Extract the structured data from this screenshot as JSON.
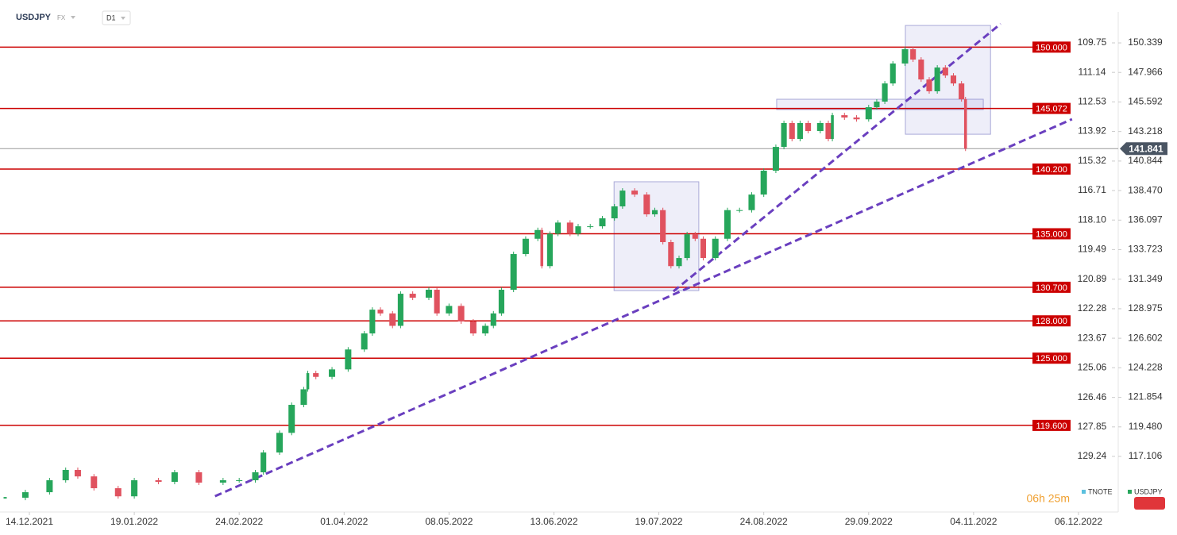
{
  "chart_data": {
    "type": "candlestick",
    "symbol": "USDJPY",
    "market": "FX",
    "timeframe": "D1",
    "timer": "06h 25m",
    "legend": [
      {
        "name": "TNOTE",
        "color": "#5bc0de"
      },
      {
        "name": "USDJPY",
        "color": "#26a65b"
      }
    ],
    "x": [
      0,
      5,
      11,
      15,
      18,
      22,
      28,
      32,
      38,
      42,
      48,
      54,
      58,
      62,
      64,
      68,
      71,
      74,
      75,
      77,
      81,
      85,
      89,
      91,
      93,
      96,
      98,
      101,
      105,
      107,
      110,
      113,
      116,
      119,
      121,
      123,
      126,
      129,
      132,
      133,
      135,
      137,
      140,
      142,
      145,
      148,
      151,
      153,
      156,
      159,
      161,
      163,
      165,
      167,
      169,
      171,
      173,
      176,
      179,
      182,
      185,
      188,
      191,
      193,
      195,
      197,
      199,
      202,
      204,
      205,
      208,
      211,
      214,
      216,
      218,
      220,
      223,
      225,
      227,
      229,
      231,
      233,
      235,
      237,
      238
    ],
    "series": [
      {
        "name": "USDJPY",
        "color_up": "#26a65b",
        "color_down": "#e0525f",
        "values": [
          113.78,
          114.23,
          115.19,
          116.02,
          115.5,
          114.55,
          113.9,
          115.19,
          115.06,
          115.83,
          115.0,
          115.19,
          115.19,
          115.83,
          117.42,
          119.0,
          121.25,
          122.5,
          123.8,
          123.5,
          124.1,
          125.7,
          126.99,
          128.9,
          128.6,
          127.6,
          130.18,
          129.86,
          130.5,
          128.6,
          129.2,
          127.95,
          126.99,
          127.6,
          128.6,
          130.5,
          133.37,
          134.6,
          135.3,
          132.4,
          135.0,
          135.9,
          135.0,
          135.6,
          135.6,
          136.24,
          137.2,
          138.47,
          138.15,
          136.56,
          136.9,
          134.33,
          132.4,
          133.05,
          134.96,
          134.6,
          133.05,
          134.6,
          136.9,
          136.9,
          138.15,
          140.07,
          141.98,
          143.9,
          142.62,
          143.9,
          143.26,
          143.9,
          142.62,
          144.53,
          144.34,
          144.2,
          145.17,
          145.62,
          147.08,
          148.68,
          149.83,
          149.0,
          147.4,
          146.45,
          148.36,
          147.72,
          147.08,
          145.81,
          141.841
        ]
      }
    ],
    "xlim": [
      -1.28,
      274.27
    ],
    "xticks": [
      {
        "value": 6,
        "label": "14.12.2021"
      },
      {
        "value": 32,
        "label": "19.01.2022"
      },
      {
        "value": 58,
        "label": "24.02.2022"
      },
      {
        "value": 84,
        "label": "01.04.2022"
      },
      {
        "value": 110,
        "label": "08.05.2022"
      },
      {
        "value": 136,
        "label": "13.06.2022"
      },
      {
        "value": 162,
        "label": "19.07.2022"
      },
      {
        "value": 188,
        "label": "24.08.2022"
      },
      {
        "value": 214,
        "label": "29.09.2022"
      },
      {
        "value": 240,
        "label": "04.11.2022"
      },
      {
        "value": 266,
        "label": "06.12.2022"
      }
    ],
    "ylim": [
      112.64,
      152.83
    ],
    "yticks": [
      150.339,
      147.966,
      145.592,
      143.218,
      140.844,
      {
        "value": 138.47,
        "label": "138.470"
      },
      136.097,
      133.723,
      131.349,
      128.975,
      126.602,
      124.228,
      121.854,
      {
        "value": 119.48,
        "label": "119.480"
      },
      117.106
    ],
    "y2lim": [
      131.86,
      108.29
    ],
    "y2ticks": [
      109.75,
      111.14,
      112.53,
      113.92,
      115.32,
      116.71,
      {
        "value": 118.1,
        "label": "118.10"
      },
      119.49,
      120.89,
      122.28,
      123.67,
      125.06,
      126.46,
      127.85,
      129.24
    ],
    "last_price": 141.841,
    "levels": [
      {
        "value": 150,
        "label": "150.000"
      },
      {
        "value": 145.072,
        "label": "145.072"
      },
      {
        "value": 140.2,
        "label": "140.200"
      },
      {
        "value": 135,
        "label": "135.000"
      },
      {
        "value": 130.7,
        "label": "130.700"
      },
      {
        "value": 128,
        "label": "128.000"
      },
      {
        "value": 125,
        "label": "125.000"
      },
      {
        "value": 119.6,
        "label": "119.600"
      }
    ],
    "level_color": "#cc0000",
    "trendlines": [
      {
        "x": [
          52,
          264.4
        ],
        "values": [
          113.91,
          144.21
        ]
      },
      {
        "x": [
          165.6,
          246.7
        ],
        "values": [
          130.37,
          151.87
        ]
      }
    ],
    "trend_color": "#6a3fbf",
    "boxes": [
      {
        "x": [
          150.9,
          171.9
        ],
        "values": [
          130.43,
          139.18
        ]
      },
      {
        "x": [
          191.2,
          242.4
        ],
        "values": [
          144.98,
          145.81
        ]
      },
      {
        "x": [
          223.1,
          244.2
        ],
        "values": [
          143.0,
          151.74
        ]
      }
    ]
  }
}
